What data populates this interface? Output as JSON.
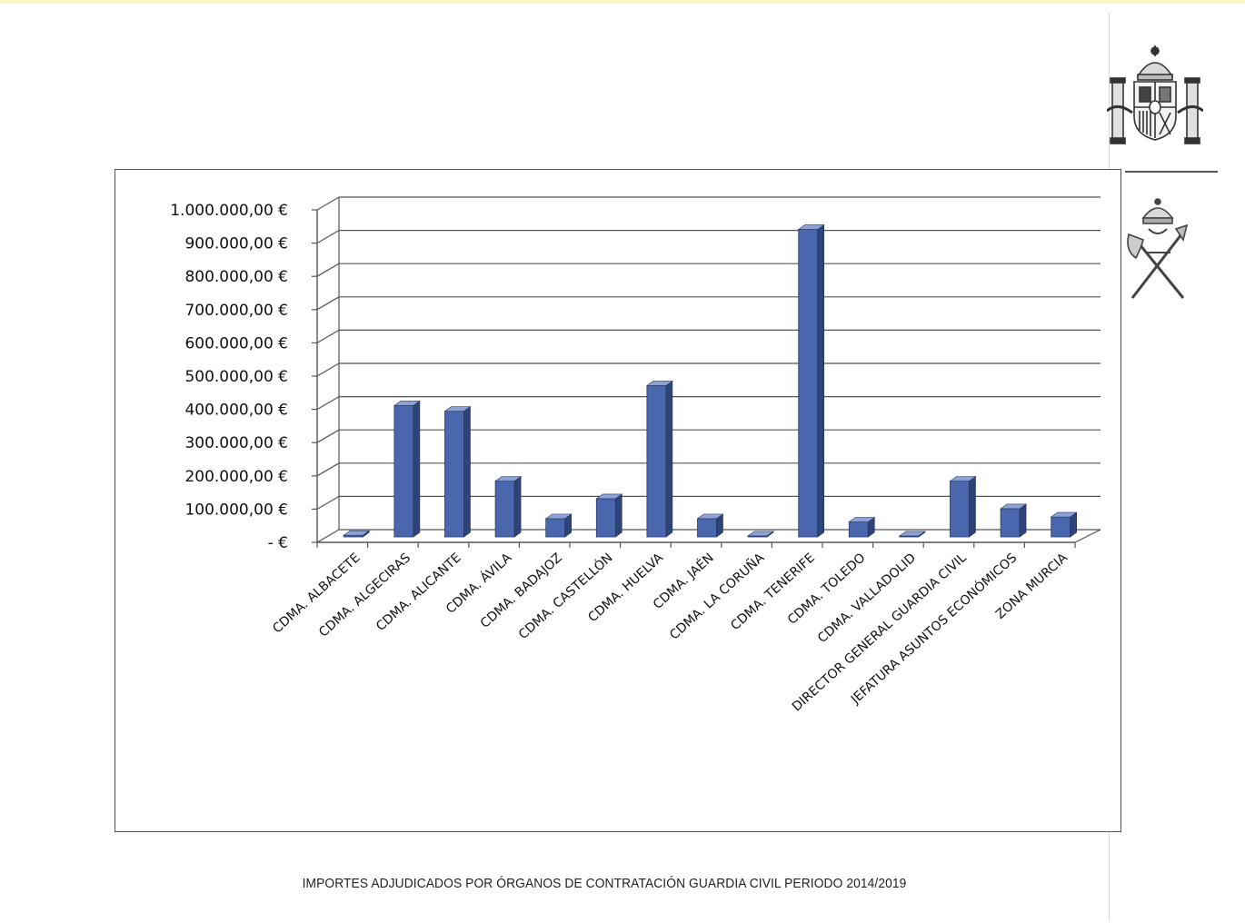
{
  "caption": "IMPORTES ADJUDICADOS POR ÓRGANOS DE CONTRATACIÓN GUARDIA CIVIL PERIODO 2014/2019",
  "emblems": [
    "spain-coat-of-arms-icon",
    "guardia-civil-emblem-icon"
  ],
  "colors": {
    "bar_front": "#4a66ad",
    "bar_side": "#2e4478",
    "bar_top": "#8da3d6",
    "grid": "#555555"
  },
  "chart_data": {
    "type": "bar",
    "title": "",
    "xlabel": "",
    "ylabel": "",
    "ylim": [
      0,
      1000000
    ],
    "y_ticks": [
      0,
      100000,
      200000,
      300000,
      400000,
      500000,
      600000,
      700000,
      800000,
      900000,
      1000000
    ],
    "y_tick_labels": [
      "- €",
      "100.000,00 €",
      "200.000,00 €",
      "300.000,00 €",
      "400.000,00 €",
      "500.000,00 €",
      "600.000,00 €",
      "700.000,00 €",
      "800.000,00 €",
      "900.000,00 €",
      "1.000.000,00 €"
    ],
    "grid": true,
    "legend": "none",
    "categories": [
      "CDMA. ALBACETE",
      "CDMA. ALGECIRAS",
      "CDMA. ALICANTE",
      "CDMA. ÁVILA",
      "CDMA. BADAJOZ",
      "CDMA. CASTELLÓN",
      "CDMA. HUELVA",
      "CDMA. JAÉN",
      "CDMA. LA CORUÑA",
      "CDMA. TENERIFE",
      "CDMA. TOLEDO",
      "CDMA. VALLADOLID",
      "DIRECTOR GENERAL GUARDIA CIVIL",
      "JEFATURA ASUNTOS ECONÓMICOS",
      "ZONA MURCIA"
    ],
    "values": [
      5000,
      395000,
      378000,
      168000,
      55000,
      115000,
      455000,
      55000,
      3000,
      925000,
      45000,
      3000,
      168000,
      85000,
      60000
    ]
  }
}
